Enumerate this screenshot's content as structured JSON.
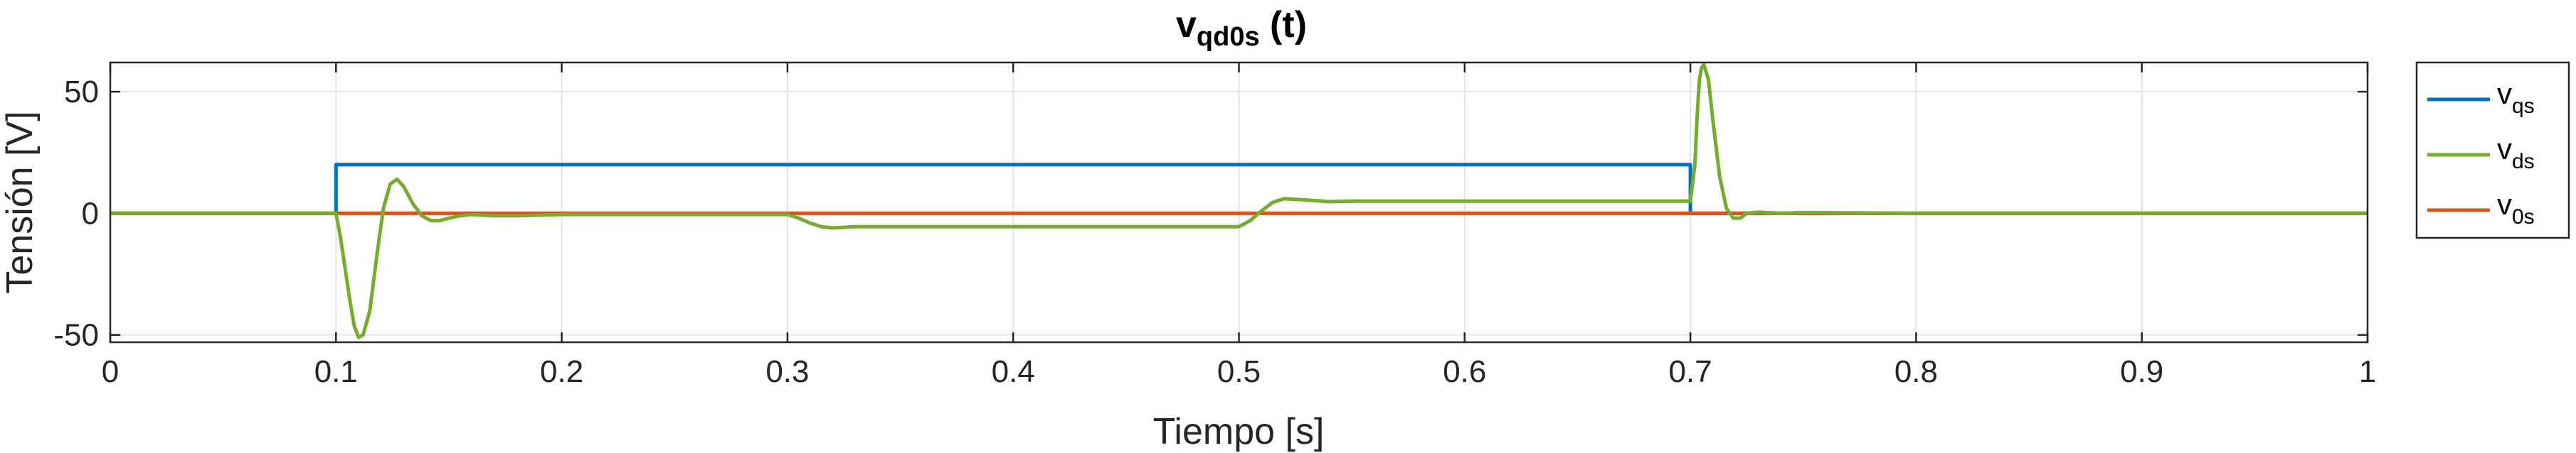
{
  "chart_data": {
    "type": "line",
    "title": "v",
    "title_subscript": "qd0s",
    "title_suffix": " (t)",
    "xlabel": "Tiempo [s]",
    "ylabel": "Tensión [V]",
    "xlim": [
      0,
      1
    ],
    "ylim": [
      -53,
      62
    ],
    "xticks": [
      0,
      0.1,
      0.2,
      0.3,
      0.4,
      0.5,
      0.6,
      0.7,
      0.8,
      0.9,
      1
    ],
    "xtick_labels": [
      "0",
      "0.1",
      "0.2",
      "0.3",
      "0.4",
      "0.5",
      "0.6",
      "0.7",
      "0.8",
      "0.9",
      "1"
    ],
    "yticks": [
      -50,
      0,
      50
    ],
    "ytick_labels": [
      "-50",
      "0",
      "50"
    ],
    "grid": true,
    "legend": "outside-right-top",
    "series": [
      {
        "name": "v",
        "subscript": "qs",
        "color": "#0072BD",
        "x": [
          0,
          0.1,
          0.1,
          0.7,
          0.7,
          1
        ],
        "y": [
          0,
          0,
          20,
          20,
          0,
          0
        ]
      },
      {
        "name": "v",
        "subscript": "ds",
        "color": "#77AC30",
        "x": [
          0,
          0.1,
          0.102,
          0.106,
          0.108,
          0.11,
          0.112,
          0.115,
          0.118,
          0.121,
          0.124,
          0.127,
          0.13,
          0.134,
          0.138,
          0.142,
          0.146,
          0.15,
          0.155,
          0.16,
          0.17,
          0.18,
          0.2,
          0.25,
          0.3,
          0.305,
          0.31,
          0.315,
          0.32,
          0.33,
          0.35,
          0.4,
          0.45,
          0.5,
          0.505,
          0.51,
          0.515,
          0.52,
          0.53,
          0.54,
          0.55,
          0.6,
          0.65,
          0.7,
          0.702,
          0.703,
          0.704,
          0.705,
          0.706,
          0.708,
          0.71,
          0.713,
          0.716,
          0.719,
          0.722,
          0.725,
          0.73,
          0.74,
          0.75,
          0.8,
          0.9,
          1
        ],
        "y": [
          0,
          0,
          -10,
          -35,
          -46,
          -51,
          -50,
          -40,
          -18,
          2,
          12,
          14,
          11,
          4,
          -1,
          -3,
          -3,
          -2,
          -1,
          -0.5,
          -1,
          -1,
          -0.5,
          -0.5,
          -0.5,
          -2,
          -4,
          -5.5,
          -6,
          -5.5,
          -5.5,
          -5.5,
          -5.5,
          -5.5,
          -3,
          1,
          4.5,
          6,
          5.5,
          4.8,
          5,
          5,
          5,
          5,
          20,
          40,
          55,
          60,
          61,
          55,
          38,
          15,
          2,
          -2,
          -2,
          0,
          0.5,
          0,
          0.3,
          0,
          0,
          0
        ]
      },
      {
        "name": "v",
        "subscript": "0s",
        "color": "#D95319",
        "x": [
          0,
          1
        ],
        "y": [
          0,
          0
        ]
      }
    ]
  }
}
